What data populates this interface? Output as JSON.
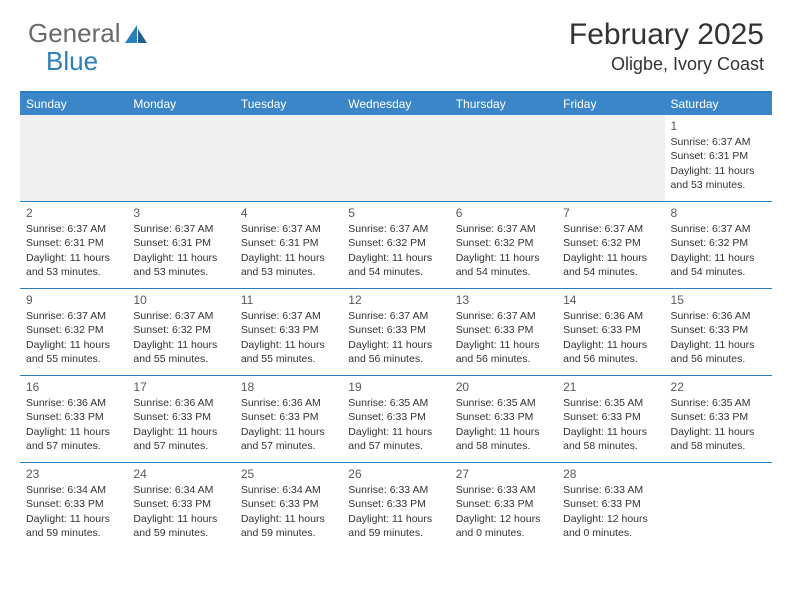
{
  "logo": {
    "part1": "General",
    "part2": "Blue"
  },
  "header": {
    "month": "February 2025",
    "location": "Oligbe, Ivory Coast"
  },
  "colors": {
    "header_bar": "#3a86c8",
    "border": "#2a7fbf",
    "spacer_bg": "#efefef",
    "text": "#333333",
    "logo_gray": "#6a6a6a",
    "logo_blue": "#2a7fbf"
  },
  "weekdays": [
    "Sunday",
    "Monday",
    "Tuesday",
    "Wednesday",
    "Thursday",
    "Friday",
    "Saturday"
  ],
  "weeks": [
    [
      null,
      null,
      null,
      null,
      null,
      null,
      {
        "n": "1",
        "sunrise": "Sunrise: 6:37 AM",
        "sunset": "Sunset: 6:31 PM",
        "daylight": "Daylight: 11 hours and 53 minutes."
      }
    ],
    [
      {
        "n": "2",
        "sunrise": "Sunrise: 6:37 AM",
        "sunset": "Sunset: 6:31 PM",
        "daylight": "Daylight: 11 hours and 53 minutes."
      },
      {
        "n": "3",
        "sunrise": "Sunrise: 6:37 AM",
        "sunset": "Sunset: 6:31 PM",
        "daylight": "Daylight: 11 hours and 53 minutes."
      },
      {
        "n": "4",
        "sunrise": "Sunrise: 6:37 AM",
        "sunset": "Sunset: 6:31 PM",
        "daylight": "Daylight: 11 hours and 53 minutes."
      },
      {
        "n": "5",
        "sunrise": "Sunrise: 6:37 AM",
        "sunset": "Sunset: 6:32 PM",
        "daylight": "Daylight: 11 hours and 54 minutes."
      },
      {
        "n": "6",
        "sunrise": "Sunrise: 6:37 AM",
        "sunset": "Sunset: 6:32 PM",
        "daylight": "Daylight: 11 hours and 54 minutes."
      },
      {
        "n": "7",
        "sunrise": "Sunrise: 6:37 AM",
        "sunset": "Sunset: 6:32 PM",
        "daylight": "Daylight: 11 hours and 54 minutes."
      },
      {
        "n": "8",
        "sunrise": "Sunrise: 6:37 AM",
        "sunset": "Sunset: 6:32 PM",
        "daylight": "Daylight: 11 hours and 54 minutes."
      }
    ],
    [
      {
        "n": "9",
        "sunrise": "Sunrise: 6:37 AM",
        "sunset": "Sunset: 6:32 PM",
        "daylight": "Daylight: 11 hours and 55 minutes."
      },
      {
        "n": "10",
        "sunrise": "Sunrise: 6:37 AM",
        "sunset": "Sunset: 6:32 PM",
        "daylight": "Daylight: 11 hours and 55 minutes."
      },
      {
        "n": "11",
        "sunrise": "Sunrise: 6:37 AM",
        "sunset": "Sunset: 6:33 PM",
        "daylight": "Daylight: 11 hours and 55 minutes."
      },
      {
        "n": "12",
        "sunrise": "Sunrise: 6:37 AM",
        "sunset": "Sunset: 6:33 PM",
        "daylight": "Daylight: 11 hours and 56 minutes."
      },
      {
        "n": "13",
        "sunrise": "Sunrise: 6:37 AM",
        "sunset": "Sunset: 6:33 PM",
        "daylight": "Daylight: 11 hours and 56 minutes."
      },
      {
        "n": "14",
        "sunrise": "Sunrise: 6:36 AM",
        "sunset": "Sunset: 6:33 PM",
        "daylight": "Daylight: 11 hours and 56 minutes."
      },
      {
        "n": "15",
        "sunrise": "Sunrise: 6:36 AM",
        "sunset": "Sunset: 6:33 PM",
        "daylight": "Daylight: 11 hours and 56 minutes."
      }
    ],
    [
      {
        "n": "16",
        "sunrise": "Sunrise: 6:36 AM",
        "sunset": "Sunset: 6:33 PM",
        "daylight": "Daylight: 11 hours and 57 minutes."
      },
      {
        "n": "17",
        "sunrise": "Sunrise: 6:36 AM",
        "sunset": "Sunset: 6:33 PM",
        "daylight": "Daylight: 11 hours and 57 minutes."
      },
      {
        "n": "18",
        "sunrise": "Sunrise: 6:36 AM",
        "sunset": "Sunset: 6:33 PM",
        "daylight": "Daylight: 11 hours and 57 minutes."
      },
      {
        "n": "19",
        "sunrise": "Sunrise: 6:35 AM",
        "sunset": "Sunset: 6:33 PM",
        "daylight": "Daylight: 11 hours and 57 minutes."
      },
      {
        "n": "20",
        "sunrise": "Sunrise: 6:35 AM",
        "sunset": "Sunset: 6:33 PM",
        "daylight": "Daylight: 11 hours and 58 minutes."
      },
      {
        "n": "21",
        "sunrise": "Sunrise: 6:35 AM",
        "sunset": "Sunset: 6:33 PM",
        "daylight": "Daylight: 11 hours and 58 minutes."
      },
      {
        "n": "22",
        "sunrise": "Sunrise: 6:35 AM",
        "sunset": "Sunset: 6:33 PM",
        "daylight": "Daylight: 11 hours and 58 minutes."
      }
    ],
    [
      {
        "n": "23",
        "sunrise": "Sunrise: 6:34 AM",
        "sunset": "Sunset: 6:33 PM",
        "daylight": "Daylight: 11 hours and 59 minutes."
      },
      {
        "n": "24",
        "sunrise": "Sunrise: 6:34 AM",
        "sunset": "Sunset: 6:33 PM",
        "daylight": "Daylight: 11 hours and 59 minutes."
      },
      {
        "n": "25",
        "sunrise": "Sunrise: 6:34 AM",
        "sunset": "Sunset: 6:33 PM",
        "daylight": "Daylight: 11 hours and 59 minutes."
      },
      {
        "n": "26",
        "sunrise": "Sunrise: 6:33 AM",
        "sunset": "Sunset: 6:33 PM",
        "daylight": "Daylight: 11 hours and 59 minutes."
      },
      {
        "n": "27",
        "sunrise": "Sunrise: 6:33 AM",
        "sunset": "Sunset: 6:33 PM",
        "daylight": "Daylight: 12 hours and 0 minutes."
      },
      {
        "n": "28",
        "sunrise": "Sunrise: 6:33 AM",
        "sunset": "Sunset: 6:33 PM",
        "daylight": "Daylight: 12 hours and 0 minutes."
      },
      null
    ]
  ]
}
